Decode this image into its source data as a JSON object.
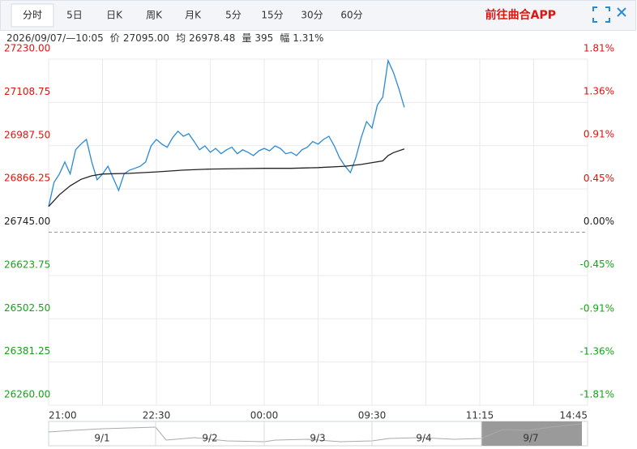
{
  "tabs": [
    "分时",
    "5日",
    "日K",
    "周K",
    "月K",
    "5分",
    "15分",
    "30分",
    "60分"
  ],
  "app_link": "前往曲合APP",
  "info": {
    "time": "2026/09/07/—10:05",
    "fields": [
      {
        "label": "价",
        "value": "27095.00"
      },
      {
        "label": "均",
        "value": "26978.48"
      },
      {
        "label": "量",
        "value": "395"
      },
      {
        "label": "幅",
        "value": "1.31%"
      }
    ]
  },
  "chart_data": {
    "type": "line",
    "xlim": [
      0,
      100
    ],
    "xticks": [
      {
        "value": 0,
        "label": "21:00"
      },
      {
        "value": 20,
        "label": "22:30"
      },
      {
        "value": 40,
        "label": "00:00"
      },
      {
        "value": 60,
        "label": "09:30"
      },
      {
        "value": 80,
        "label": "11:15"
      },
      {
        "value": 100,
        "label": "14:45"
      }
    ],
    "ylim": [
      26260,
      27230
    ],
    "yticks": [
      {
        "value": 27230,
        "label": "27230.00"
      },
      {
        "value": 27108.75,
        "label": "27108.75"
      },
      {
        "value": 26987.5,
        "label": "26987.50"
      },
      {
        "value": 26866.25,
        "label": "26866.25"
      },
      {
        "value": 26745,
        "label": "26745.00"
      },
      {
        "value": 26623.75,
        "label": "26623.75"
      },
      {
        "value": 26502.5,
        "label": "26502.50"
      },
      {
        "value": 26381.25,
        "label": "26381.25"
      },
      {
        "value": 26260,
        "label": "26260.00"
      }
    ],
    "y2lim": [
      -1.81,
      1.81
    ],
    "y2ticks": [
      {
        "value": 1.81,
        "label": "1.81%"
      },
      {
        "value": 1.36,
        "label": "1.36%"
      },
      {
        "value": 0.91,
        "label": "0.91%"
      },
      {
        "value": 0.45,
        "label": "0.45%"
      },
      {
        "value": 0,
        "label": "0.00%"
      },
      {
        "value": -0.45,
        "label": "-0.45%"
      },
      {
        "value": -0.91,
        "label": "-0.91%"
      },
      {
        "value": -1.36,
        "label": "-1.36%"
      },
      {
        "value": -1.81,
        "label": "-1.81%"
      }
    ],
    "grid": true,
    "series": [
      {
        "color": "#2a8ad6",
        "x": [
          0,
          1,
          2,
          3,
          4,
          5,
          6,
          7,
          8,
          9,
          10,
          11,
          12,
          13,
          14,
          15,
          16,
          17,
          18,
          19,
          20,
          21,
          22,
          23,
          24,
          25,
          26,
          27,
          28,
          29,
          30,
          31,
          32,
          33,
          34,
          35,
          36,
          37,
          38,
          39,
          40,
          41,
          42,
          43,
          44,
          45,
          46,
          47,
          48,
          49,
          50,
          51,
          52,
          53,
          54,
          55,
          56,
          57,
          58,
          59,
          60,
          61,
          62,
          63,
          64,
          65,
          66
        ],
        "values": [
          26817,
          26885,
          26908,
          26942,
          26908,
          26976,
          26992,
          27005,
          26942,
          26892,
          26908,
          26930,
          26896,
          26862,
          26908,
          26919,
          26924,
          26930,
          26942,
          26987,
          27005,
          26992,
          26983,
          27010,
          27028,
          27014,
          27021,
          26999,
          26976,
          26987,
          26969,
          26980,
          26965,
          26976,
          26983,
          26965,
          26976,
          26969,
          26960,
          26973,
          26980,
          26973,
          26987,
          26980,
          26965,
          26969,
          26960,
          26976,
          26983,
          26999,
          26992,
          27005,
          27014,
          26987,
          26953,
          26930,
          26912,
          26953,
          27010,
          27055,
          27037,
          27101,
          27124,
          27226,
          27192,
          27146,
          27095
        ]
      },
      {
        "color": "#222222",
        "x": [
          0,
          2,
          4,
          6,
          8,
          10,
          15,
          20,
          25,
          30,
          35,
          40,
          45,
          50,
          55,
          58,
          62,
          63,
          64,
          66
        ],
        "values": [
          26817,
          26850,
          26875,
          26893,
          26903,
          26908,
          26910,
          26914,
          26919,
          26922,
          26923,
          26924,
          26924,
          26926,
          26930,
          26935,
          26945,
          26960,
          26968,
          26978.48
        ]
      }
    ]
  },
  "navigator": {
    "labels": [
      "9/1",
      "9/2",
      "9/3",
      "9/4",
      "9/7"
    ]
  }
}
